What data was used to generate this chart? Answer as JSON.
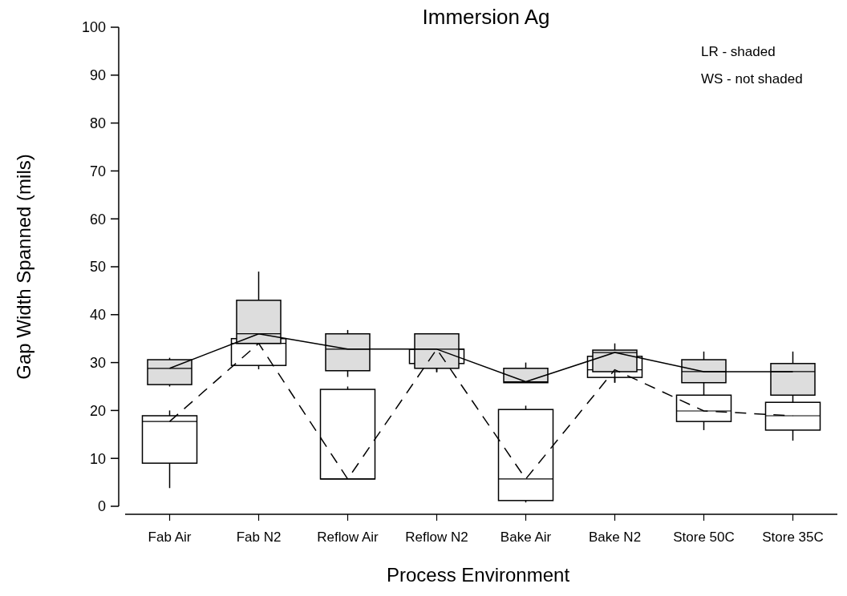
{
  "chart_data": {
    "type": "box",
    "title": "Immersion Ag",
    "xlabel": "Process Environment",
    "ylabel": "Gap Width Spanned (mils)",
    "categories": [
      "Fab Air",
      "Fab N2",
      "Reflow Air",
      "Reflow N2",
      "Bake Air",
      "Bake N2",
      "Store 50C",
      "Store 35C"
    ],
    "ylim": [
      0,
      100
    ],
    "yticks": [
      0,
      10,
      20,
      30,
      40,
      50,
      60,
      70,
      80,
      90,
      100
    ],
    "annotations": [
      "LR - shaded",
      "WS - not shaded"
    ],
    "series": [
      {
        "color": "#ffffff",
        "boxes": [
          {
            "low": 3.8,
            "q1": 9,
            "median": 17.7,
            "q3": 18.9,
            "high": 20
          },
          {
            "low": 28.6,
            "q1": 29.4,
            "median": 34,
            "q3": 35,
            "high": 35
          },
          {
            "low": 5.7,
            "q1": 5.7,
            "median": 5.7,
            "q3": 24.4,
            "high": 25
          },
          {
            "low": 28,
            "q1": 29.8,
            "median": 32.8,
            "q3": 32.8,
            "high": 32.8
          },
          {
            "low": 0.8,
            "q1": 1.2,
            "median": 5.7,
            "q3": 20.2,
            "high": 21
          },
          {
            "low": 25.8,
            "q1": 26.9,
            "median": 28.5,
            "q3": 31.3,
            "high": 31.5
          },
          {
            "low": 15.9,
            "q1": 17.7,
            "median": 19.9,
            "q3": 23.2,
            "high": 23.2
          },
          {
            "low": 13.7,
            "q1": 15.9,
            "median": 18.9,
            "q3": 21.7,
            "high": 21.7
          }
        ]
      },
      {
        "color": "#dddddd",
        "boxes": [
          {
            "low": 25,
            "q1": 25.4,
            "median": 28.8,
            "q3": 30.6,
            "high": 31
          },
          {
            "low": 34,
            "q1": 34,
            "median": 36,
            "q3": 43,
            "high": 49
          },
          {
            "low": 27,
            "q1": 28.3,
            "median": 32.8,
            "q3": 36,
            "high": 36.8
          },
          {
            "low": 28,
            "q1": 28.8,
            "median": 32.8,
            "q3": 36,
            "high": 36
          },
          {
            "low": 25.8,
            "q1": 25.8,
            "median": 26,
            "q3": 28.8,
            "high": 30
          },
          {
            "low": 25.8,
            "q1": 28.1,
            "median": 32.1,
            "q3": 32.6,
            "high": 34
          },
          {
            "low": 23.2,
            "q1": 25.8,
            "median": 28.1,
            "q3": 30.6,
            "high": 32.3
          },
          {
            "low": 21.7,
            "q1": 23.2,
            "median": 28.1,
            "q3": 29.8,
            "high": 32.3
          }
        ]
      },
      {
        "type": "line",
        "color": "#000000",
        "line_style": "dashed",
        "values": [
          17.7,
          34,
          5.7,
          32.8,
          5.7,
          28.5,
          19.9,
          18.9
        ]
      },
      {
        "type": "line",
        "color": "#000000",
        "line_style": "solid",
        "values": [
          28.8,
          36,
          32.8,
          32.8,
          26,
          32.1,
          28.1,
          28.1
        ]
      }
    ]
  }
}
